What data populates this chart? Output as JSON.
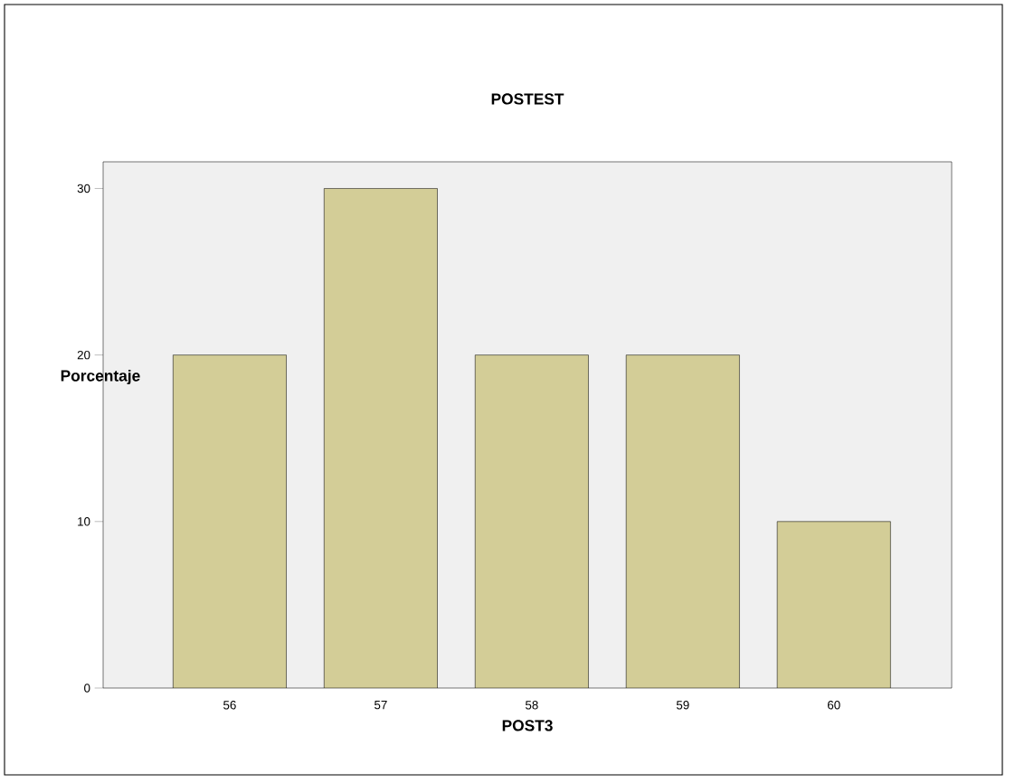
{
  "chart_data": {
    "type": "bar",
    "title": "POSTEST",
    "xlabel": "POST3",
    "ylabel": "Porcentaje",
    "categories": [
      "56",
      "57",
      "58",
      "59",
      "60"
    ],
    "values": [
      20,
      30,
      20,
      20,
      10
    ],
    "color": "#d3cd97",
    "ylim": [
      0,
      31.6
    ],
    "yticks": [
      0,
      10,
      20,
      30
    ],
    "grid": false
  }
}
